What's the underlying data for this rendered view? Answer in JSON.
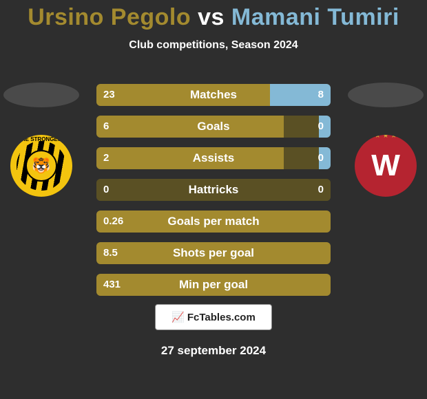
{
  "title": {
    "player1": "Ursino Pegolo",
    "vs": "vs",
    "player2": "Mamani Tumiri",
    "color1": "#a38a2f",
    "color_vs": "#ffffff",
    "color2": "#84b9d6"
  },
  "subtitle": "Club competitions, Season 2024",
  "colors": {
    "bar_left": "#a38a2f",
    "bar_right": "#84b9d6",
    "bar_track_dark": "#5a5024",
    "ellipse_left": "#4a4a4a",
    "ellipse_right": "#4a4a4a",
    "badge_left_bg": "#f3c40f",
    "badge_right_bg": "#b52430"
  },
  "bars": [
    {
      "label": "Matches",
      "left_val": "23",
      "right_val": "8",
      "left_frac": 0.74,
      "right_frac": 0.26
    },
    {
      "label": "Goals",
      "left_val": "6",
      "right_val": "0",
      "left_frac": 0.8,
      "right_frac": 0.05
    },
    {
      "label": "Assists",
      "left_val": "2",
      "right_val": "0",
      "left_frac": 0.8,
      "right_frac": 0.05
    },
    {
      "label": "Hattricks",
      "left_val": "0",
      "right_val": "0",
      "left_frac": 0.0,
      "right_frac": 0.0
    },
    {
      "label": "Goals per match",
      "left_val": "0.26",
      "right_val": "",
      "left_frac": 1.0,
      "right_frac": 0.0
    },
    {
      "label": "Shots per goal",
      "left_val": "8.5",
      "right_val": "",
      "left_frac": 1.0,
      "right_frac": 0.0
    },
    {
      "label": "Min per goal",
      "left_val": "431",
      "right_val": "",
      "left_frac": 1.0,
      "right_frac": 0.0
    }
  ],
  "badges": {
    "left_ring_text": "HE STRONGES",
    "left_emoji": "🐯",
    "right_letter": "W",
    "right_stars": "★ ★ ★ ★ ★"
  },
  "footer": {
    "logo_icon": "📈",
    "logo_text": "FcTables.com",
    "date": "27 september 2024"
  }
}
